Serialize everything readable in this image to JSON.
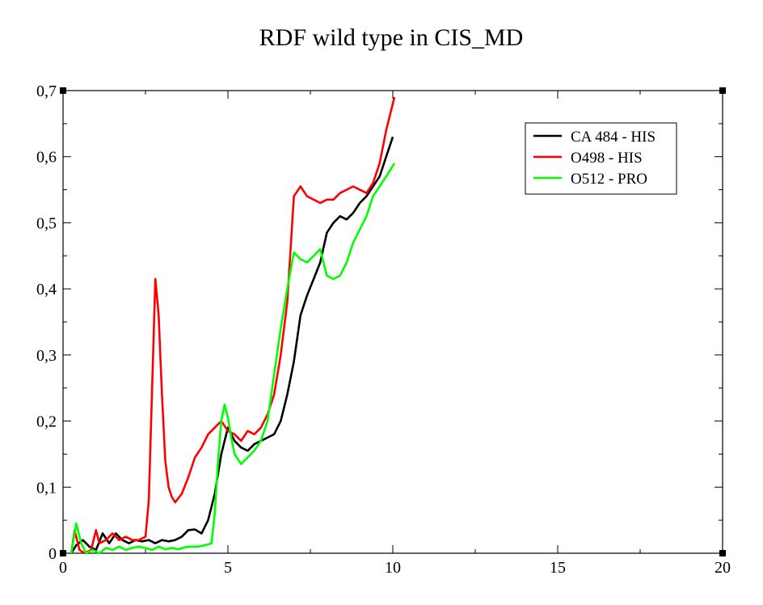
{
  "chart_data": {
    "type": "line",
    "title": "RDF wild type in CIS_MD",
    "xlabel": "",
    "ylabel": "",
    "xlim": [
      0,
      20
    ],
    "ylim": [
      0,
      0.7
    ],
    "x_ticks": [
      0,
      5,
      10,
      15,
      20
    ],
    "x_tick_labels": [
      "0",
      "5",
      "10",
      "15",
      "20"
    ],
    "y_ticks": [
      0,
      0.1,
      0.2,
      0.3,
      0.4,
      0.5,
      0.6,
      0.7
    ],
    "y_tick_labels": [
      "0",
      "0,1",
      "0,2",
      "0,3",
      "0,4",
      "0,5",
      "0,6",
      "0,7"
    ],
    "grid": false,
    "legend_position": "top-right",
    "series": [
      {
        "name": "CA 484 - HIS",
        "color": "#000000",
        "points": [
          [
            0.25,
            0.0
          ],
          [
            0.4,
            0.012
          ],
          [
            0.6,
            0.02
          ],
          [
            0.8,
            0.01
          ],
          [
            1.0,
            0.005
          ],
          [
            1.2,
            0.03
          ],
          [
            1.4,
            0.015
          ],
          [
            1.6,
            0.03
          ],
          [
            1.8,
            0.02
          ],
          [
            2.0,
            0.015
          ],
          [
            2.2,
            0.02
          ],
          [
            2.4,
            0.018
          ],
          [
            2.6,
            0.02
          ],
          [
            2.8,
            0.015
          ],
          [
            3.0,
            0.02
          ],
          [
            3.2,
            0.018
          ],
          [
            3.4,
            0.02
          ],
          [
            3.6,
            0.025
          ],
          [
            3.8,
            0.035
          ],
          [
            4.0,
            0.036
          ],
          [
            4.2,
            0.03
          ],
          [
            4.4,
            0.05
          ],
          [
            4.6,
            0.09
          ],
          [
            4.8,
            0.15
          ],
          [
            5.0,
            0.19
          ],
          [
            5.2,
            0.17
          ],
          [
            5.4,
            0.16
          ],
          [
            5.6,
            0.155
          ],
          [
            5.8,
            0.165
          ],
          [
            6.0,
            0.17
          ],
          [
            6.2,
            0.175
          ],
          [
            6.4,
            0.18
          ],
          [
            6.6,
            0.2
          ],
          [
            6.8,
            0.24
          ],
          [
            7.0,
            0.29
          ],
          [
            7.2,
            0.36
          ],
          [
            7.4,
            0.39
          ],
          [
            7.6,
            0.415
          ],
          [
            7.8,
            0.44
          ],
          [
            8.0,
            0.485
          ],
          [
            8.2,
            0.5
          ],
          [
            8.4,
            0.51
          ],
          [
            8.6,
            0.505
          ],
          [
            8.8,
            0.515
          ],
          [
            9.0,
            0.53
          ],
          [
            9.2,
            0.54
          ],
          [
            9.4,
            0.555
          ],
          [
            9.6,
            0.57
          ],
          [
            9.8,
            0.6
          ],
          [
            10.0,
            0.63
          ]
        ]
      },
      {
        "name": "O498 - HIS",
        "color": "#ff0000",
        "points": [
          [
            0.25,
            0.0
          ],
          [
            0.35,
            0.035
          ],
          [
            0.5,
            0.005
          ],
          [
            0.65,
            0.0
          ],
          [
            0.85,
            0.005
          ],
          [
            1.0,
            0.035
          ],
          [
            1.1,
            0.015
          ],
          [
            1.3,
            0.02
          ],
          [
            1.5,
            0.03
          ],
          [
            1.7,
            0.02
          ],
          [
            1.9,
            0.025
          ],
          [
            2.1,
            0.02
          ],
          [
            2.3,
            0.02
          ],
          [
            2.5,
            0.025
          ],
          [
            2.6,
            0.08
          ],
          [
            2.7,
            0.25
          ],
          [
            2.8,
            0.415
          ],
          [
            2.9,
            0.36
          ],
          [
            3.0,
            0.24
          ],
          [
            3.1,
            0.14
          ],
          [
            3.2,
            0.1
          ],
          [
            3.3,
            0.085
          ],
          [
            3.4,
            0.077
          ],
          [
            3.6,
            0.09
          ],
          [
            3.8,
            0.115
          ],
          [
            4.0,
            0.145
          ],
          [
            4.2,
            0.16
          ],
          [
            4.4,
            0.18
          ],
          [
            4.6,
            0.19
          ],
          [
            4.8,
            0.2
          ],
          [
            5.0,
            0.185
          ],
          [
            5.2,
            0.18
          ],
          [
            5.4,
            0.17
          ],
          [
            5.6,
            0.185
          ],
          [
            5.8,
            0.18
          ],
          [
            6.0,
            0.19
          ],
          [
            6.2,
            0.21
          ],
          [
            6.4,
            0.24
          ],
          [
            6.6,
            0.3
          ],
          [
            6.8,
            0.38
          ],
          [
            7.0,
            0.54
          ],
          [
            7.2,
            0.555
          ],
          [
            7.4,
            0.54
          ],
          [
            7.6,
            0.535
          ],
          [
            7.8,
            0.53
          ],
          [
            8.0,
            0.535
          ],
          [
            8.2,
            0.535
          ],
          [
            8.4,
            0.545
          ],
          [
            8.6,
            0.55
          ],
          [
            8.8,
            0.555
          ],
          [
            9.0,
            0.55
          ],
          [
            9.2,
            0.545
          ],
          [
            9.4,
            0.56
          ],
          [
            9.6,
            0.59
          ],
          [
            9.8,
            0.64
          ],
          [
            10.05,
            0.69
          ]
        ]
      },
      {
        "name": "O512 - PRO",
        "color": "#00ff00",
        "points": [
          [
            0.25,
            0.0
          ],
          [
            0.4,
            0.045
          ],
          [
            0.55,
            0.015
          ],
          [
            0.7,
            0.0
          ],
          [
            0.9,
            0.005
          ],
          [
            1.1,
            0.0
          ],
          [
            1.3,
            0.008
          ],
          [
            1.5,
            0.005
          ],
          [
            1.7,
            0.01
          ],
          [
            1.9,
            0.005
          ],
          [
            2.1,
            0.008
          ],
          [
            2.3,
            0.01
          ],
          [
            2.5,
            0.008
          ],
          [
            2.7,
            0.005
          ],
          [
            2.9,
            0.01
          ],
          [
            3.1,
            0.006
          ],
          [
            3.3,
            0.008
          ],
          [
            3.5,
            0.006
          ],
          [
            3.7,
            0.009
          ],
          [
            3.9,
            0.01
          ],
          [
            4.1,
            0.01
          ],
          [
            4.3,
            0.012
          ],
          [
            4.5,
            0.015
          ],
          [
            4.6,
            0.06
          ],
          [
            4.7,
            0.14
          ],
          [
            4.8,
            0.2
          ],
          [
            4.9,
            0.225
          ],
          [
            5.0,
            0.205
          ],
          [
            5.1,
            0.175
          ],
          [
            5.2,
            0.15
          ],
          [
            5.4,
            0.135
          ],
          [
            5.6,
            0.145
          ],
          [
            5.8,
            0.155
          ],
          [
            6.0,
            0.17
          ],
          [
            6.2,
            0.2
          ],
          [
            6.4,
            0.27
          ],
          [
            6.6,
            0.34
          ],
          [
            6.8,
            0.4
          ],
          [
            7.0,
            0.455
          ],
          [
            7.2,
            0.445
          ],
          [
            7.4,
            0.44
          ],
          [
            7.6,
            0.45
          ],
          [
            7.8,
            0.46
          ],
          [
            8.0,
            0.42
          ],
          [
            8.2,
            0.415
          ],
          [
            8.4,
            0.42
          ],
          [
            8.6,
            0.44
          ],
          [
            8.8,
            0.47
          ],
          [
            9.0,
            0.49
          ],
          [
            9.2,
            0.51
          ],
          [
            9.4,
            0.54
          ],
          [
            9.6,
            0.555
          ],
          [
            9.8,
            0.57
          ],
          [
            10.05,
            0.59
          ]
        ]
      }
    ]
  }
}
